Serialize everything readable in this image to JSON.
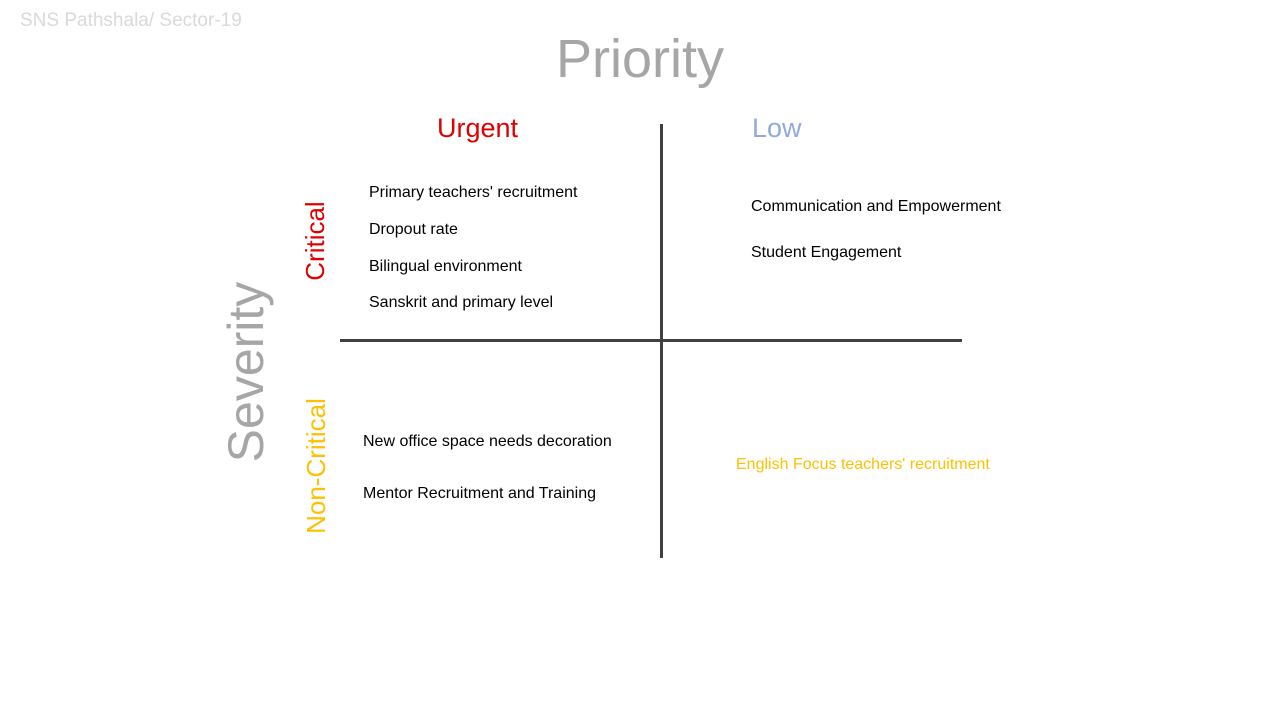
{
  "org_label": "SNS Pathshala/ Sector-19",
  "title": "Priority",
  "columns": {
    "urgent": "Urgent",
    "low": "Low"
  },
  "y_axis_label": "Severity",
  "rows": {
    "critical": "Critical",
    "non_critical": "Non-Critical"
  },
  "quadrants": {
    "critical_urgent": [
      "Primary teachers' recruitment",
      "Dropout rate",
      "Bilingual environment",
      "Sanskrit and primary level"
    ],
    "critical_low": [
      "Communication and Empowerment",
      "Student Engagement"
    ],
    "noncritical_urgent": [
      "New office space needs decoration",
      "Mentor Recruitment and Training"
    ],
    "noncritical_low": [
      "English Focus teachers' recruitment"
    ]
  },
  "colors": {
    "red": "#e00000",
    "blue": "#8faadc",
    "yellow": "#ffc000",
    "gray": "#a6a6a6",
    "light_gray": "#d9d9d9",
    "line": "#404040"
  }
}
